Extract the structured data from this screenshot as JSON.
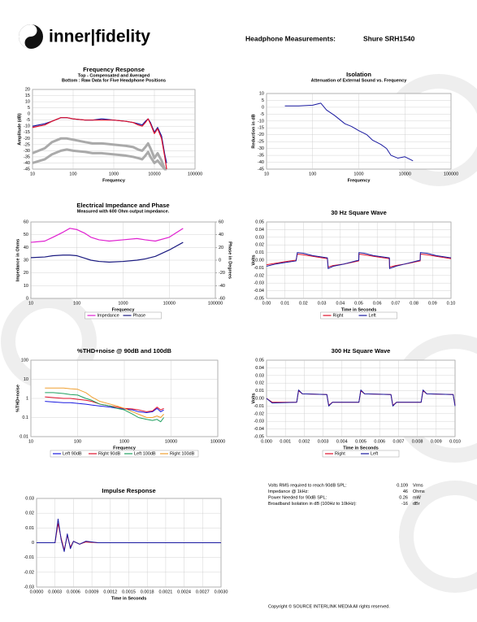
{
  "header": {
    "logo": "inner|fidelity",
    "heading": "Headphone Measurements:",
    "model": "Shure SRH1540"
  },
  "specs": {
    "rows": [
      [
        "Volts RMS required to reach 90dB SPL:",
        0.109,
        "Vrms"
      ],
      [
        "Impedance @ 1kHz:",
        46,
        "Ohms"
      ],
      [
        "Power Needed for 90dB SPL:",
        0.26,
        "mW"
      ],
      [
        "Broadband Isolation in dB (100Hz to 10kHz):",
        -16,
        "dBr"
      ]
    ]
  },
  "footer": {
    "copyright": "Copyright © SOURCE INTERLINK MEDIA All rights reserved."
  },
  "chart_data": [
    {
      "type": "line",
      "title": "Frequency Response",
      "subtitle": [
        "Top -  Compensated and Averaged",
        "Bottom : Raw Data for Five Headphone Positions"
      ],
      "xlabel": "Frequency",
      "ylabel": "Amplitude (dB)",
      "xscale": "log",
      "grid": true,
      "x": [
        10,
        20,
        30,
        50,
        70,
        100,
        200,
        300,
        500,
        1000,
        2000,
        3000,
        4000,
        5000,
        6000,
        7000,
        8000,
        10000,
        12000,
        15000,
        18000,
        20000
      ],
      "xlim": [
        10,
        100000
      ],
      "xticks": [
        10,
        100,
        1000,
        10000,
        100000
      ],
      "ylim": [
        -45,
        20
      ],
      "yticks": [
        20,
        15,
        10,
        5,
        0,
        -5,
        -10,
        -15,
        -20,
        -25,
        -30,
        -35,
        -40,
        -45
      ],
      "series": [
        {
          "color": "#aaaaaa",
          "width": 3,
          "values": [
            -32,
            -28,
            -23,
            -20,
            -20,
            -21,
            -23,
            -24,
            -24,
            -25,
            -26,
            -27,
            -29,
            -30,
            -27,
            -24,
            -28,
            -36,
            -32,
            -38,
            -45,
            -45
          ]
        },
        {
          "color": "#aaaaaa",
          "width": 3,
          "values": [
            -40,
            -37,
            -33,
            -30,
            -29,
            -30,
            -31,
            -32,
            -32,
            -33,
            -34,
            -35,
            -36,
            -37,
            -34,
            -31,
            -35,
            -40,
            -38,
            -42,
            -45,
            -45
          ]
        },
        {
          "color": "#1a1aa0",
          "width": 1.2,
          "values": [
            -10,
            -8,
            -6,
            -3,
            -3,
            -4,
            -5,
            -5,
            -4,
            -5,
            -6,
            -7,
            -8,
            -9,
            -6,
            -4,
            -7,
            -15,
            -11,
            -18,
            -33,
            -40
          ]
        },
        {
          "color": "#e0102a",
          "width": 1.2,
          "values": [
            -11,
            -9,
            -6,
            -3,
            -3,
            -4,
            -5,
            -5,
            -5,
            -5,
            -6,
            -7,
            -9,
            -10,
            -7,
            -4,
            -8,
            -16,
            -12,
            -20,
            -35,
            -45
          ]
        }
      ]
    },
    {
      "type": "line",
      "title": "Isolation",
      "subtitle": [
        "Attenuation of External Sound vs. Frequency"
      ],
      "xlabel": "Frequency",
      "ylabel": "Reduction in dB",
      "xscale": "log",
      "grid": true,
      "x": [
        25,
        50,
        100,
        150,
        200,
        300,
        500,
        700,
        1000,
        1500,
        2000,
        3000,
        4000,
        5000,
        7000,
        10000,
        15000
      ],
      "xlim": [
        10,
        100000
      ],
      "xticks": [
        10,
        100,
        1000,
        10000,
        100000
      ],
      "ylim": [
        -45,
        10
      ],
      "yticks": [
        10,
        5,
        0,
        -5,
        -10,
        -15,
        -20,
        -25,
        -30,
        -35,
        -40,
        -45
      ],
      "series": [
        {
          "color": "#1a1aa0",
          "width": 1,
          "values": [
            1,
            1,
            1.5,
            3,
            -2,
            -6,
            -12,
            -14,
            -17,
            -20,
            -24,
            -27,
            -30,
            -35,
            -37,
            -36,
            -39
          ]
        }
      ]
    },
    {
      "type": "line",
      "title": "Electrical Impedance and Phase",
      "subtitle": [
        "Measured with 600 Ohm output impedance."
      ],
      "xlabel": "Frequency",
      "ylabel": "Impedance in Ohms",
      "y2label": "Phase in Degrees",
      "xscale": "log",
      "grid": true,
      "legend": "bottom",
      "x": [
        10,
        20,
        30,
        50,
        70,
        100,
        150,
        200,
        300,
        500,
        1000,
        2000,
        3000,
        5000,
        10000,
        20000
      ],
      "xlim": [
        10,
        100000
      ],
      "xticks": [
        10,
        100,
        1000,
        10000,
        100000
      ],
      "ylim": [
        0,
        60
      ],
      "yticks": [
        60,
        50,
        40,
        30,
        20,
        10,
        0
      ],
      "y2lim": [
        -60,
        60
      ],
      "y2ticks": [
        60,
        40,
        20,
        0,
        -20,
        -40,
        -60
      ],
      "series": [
        {
          "name": "Impedance",
          "color": "#e020d0",
          "width": 1.2,
          "values": [
            44,
            45,
            48,
            52,
            55,
            54,
            51,
            48,
            46,
            45,
            46,
            47,
            46,
            45,
            48,
            55
          ]
        },
        {
          "name": "Phase",
          "axis": "y2",
          "color": "#1a1a80",
          "width": 1.2,
          "values": [
            4,
            5,
            7,
            8,
            8,
            7,
            3,
            0,
            -2,
            -3,
            -2,
            0,
            2,
            6,
            16,
            28
          ]
        }
      ]
    },
    {
      "type": "line",
      "title": "30 Hz Square Wave",
      "xlabel": "Time in Seconds",
      "ylabel": "Volts",
      "grid": true,
      "legend": "bottom",
      "x": [
        0,
        0.005,
        0.01,
        0.016,
        0.0167,
        0.02,
        0.025,
        0.033,
        0.0334,
        0.036,
        0.042,
        0.05,
        0.0501,
        0.053,
        0.058,
        0.0666,
        0.0667,
        0.07,
        0.075,
        0.0833,
        0.0834,
        0.087,
        0.092,
        0.1
      ],
      "xlim": [
        0,
        0.1
      ],
      "xticks": [
        {
          "value": 0,
          "label": "0.00"
        },
        0.01,
        0.02,
        0.03,
        0.04,
        0.05,
        0.06,
        0.07,
        0.08,
        0.09,
        {
          "value": 0.1,
          "label": "0.10"
        }
      ],
      "ylim": [
        -0.05,
        0.05
      ],
      "yticks": [
        0.05,
        0.04,
        0.03,
        0.02,
        0.01,
        {
          "value": 0,
          "label": "0.00"
        },
        -0.01,
        -0.02,
        -0.03,
        -0.04,
        -0.05
      ],
      "series": [
        {
          "name": "Right",
          "color": "#e0102a",
          "width": 1,
          "values": [
            -0.006,
            -0.004,
            -0.002,
            0,
            0.008,
            0.007,
            0.005,
            0.002,
            -0.009,
            -0.007,
            -0.005,
            -0.001,
            0.008,
            0.007,
            0.005,
            0.002,
            -0.009,
            -0.007,
            -0.005,
            -0.001,
            0.008,
            0.007,
            0.005,
            0.002
          ]
        },
        {
          "name": "Left",
          "color": "#1a1aa0",
          "width": 1,
          "values": [
            -0.008,
            -0.005,
            -0.003,
            -0.001,
            0.01,
            0.009,
            0.006,
            0.003,
            -0.011,
            -0.008,
            -0.005,
            0,
            0.01,
            0.009,
            0.006,
            0.003,
            -0.011,
            -0.008,
            -0.005,
            0,
            0.01,
            0.009,
            0.006,
            0.003
          ]
        }
      ]
    },
    {
      "type": "line",
      "title": "%THD+noise @ 90dB and 100dB",
      "xlabel": "Frequency",
      "ylabel": "%THD+noise",
      "xscale": "log",
      "yscale": "log",
      "grid": true,
      "legend": "bottom",
      "x": [
        20,
        30,
        50,
        70,
        100,
        150,
        200,
        300,
        500,
        700,
        1000,
        1500,
        2000,
        3000,
        4000,
        5000,
        6000,
        7000
      ],
      "xlim": [
        10,
        100000
      ],
      "xticks": [
        10,
        100,
        1000,
        10000,
        100000
      ],
      "ylim": [
        0.01,
        100
      ],
      "yticks": [
        100,
        10,
        1,
        0.1,
        0.01
      ],
      "series": [
        {
          "name": "Left 90dB",
          "color": "#1a1ae0",
          "width": 1,
          "values": [
            0.7,
            0.65,
            0.6,
            0.6,
            0.55,
            0.5,
            0.45,
            0.4,
            0.35,
            0.3,
            0.28,
            0.25,
            0.2,
            0.18,
            0.2,
            0.3,
            0.2,
            0.25
          ]
        },
        {
          "name": "Right 90dB",
          "color": "#e0102a",
          "width": 1,
          "values": [
            1.2,
            1.1,
            1,
            1,
            0.9,
            0.8,
            0.7,
            0.5,
            0.4,
            0.35,
            0.3,
            0.28,
            0.25,
            0.2,
            0.22,
            0.35,
            0.25,
            0.3
          ]
        },
        {
          "name": "Left 100dB",
          "color": "#20a060",
          "width": 1,
          "values": [
            2,
            2,
            1.8,
            1.6,
            1.5,
            1,
            0.8,
            0.5,
            0.4,
            0.3,
            0.25,
            0.15,
            0.1,
            0.08,
            0.07,
            0.08,
            0.06,
            0.1
          ]
        },
        {
          "name": "Right 100dB",
          "color": "#f0a030",
          "width": 1,
          "values": [
            3.5,
            3.5,
            3.5,
            3.2,
            3,
            2,
            1.2,
            0.7,
            0.5,
            0.4,
            0.3,
            0.2,
            0.15,
            0.1,
            0.1,
            0.12,
            0.1,
            0.15
          ]
        }
      ]
    },
    {
      "type": "line",
      "title": "300 Hz Square Wave",
      "xlabel": "Time in Seconds",
      "ylabel": "Volts",
      "grid": true,
      "legend": "bottom",
      "x": [
        0,
        0.0003,
        0.0016,
        0.0017,
        0.0019,
        0.0032,
        0.0033,
        0.0035,
        0.0049,
        0.005,
        0.0052,
        0.0066,
        0.0067,
        0.0069,
        0.0082,
        0.0083,
        0.0085,
        0.0099,
        0.01
      ],
      "xlim": [
        0,
        0.01
      ],
      "xticks": [
        {
          "value": 0,
          "label": "0.000"
        },
        {
          "value": 0.001,
          "label": "0.001"
        },
        {
          "value": 0.002,
          "label": "0.002"
        },
        {
          "value": 0.003,
          "label": "0.003"
        },
        {
          "value": 0.004,
          "label": "0.004"
        },
        {
          "value": 0.005,
          "label": "0.005"
        },
        {
          "value": 0.006,
          "label": "0.006"
        },
        {
          "value": 0.007,
          "label": "0.007"
        },
        {
          "value": 0.008,
          "label": "0.008"
        },
        {
          "value": 0.009,
          "label": "0.009"
        },
        {
          "value": 0.01,
          "label": "0.010"
        }
      ],
      "ylim": [
        -0.05,
        0.05
      ],
      "yticks": [
        0.05,
        0.04,
        0.03,
        0.02,
        0.01,
        {
          "value": 0,
          "label": "0.00"
        },
        -0.01,
        -0.02,
        -0.03,
        -0.04,
        -0.05
      ],
      "series": [
        {
          "name": "Right",
          "color": "#e0102a",
          "width": 1,
          "values": [
            0,
            -0.005,
            -0.005,
            0.01,
            0.006,
            0.005,
            -0.009,
            -0.005,
            -0.005,
            0.01,
            0.006,
            0.005,
            -0.009,
            -0.005,
            -0.005,
            0.01,
            0.006,
            0.005,
            -0.009
          ]
        },
        {
          "name": "Left",
          "color": "#1a1aa0",
          "width": 1,
          "values": [
            0,
            -0.006,
            -0.005,
            0.011,
            0.006,
            0.005,
            -0.01,
            -0.005,
            -0.005,
            0.011,
            0.006,
            0.005,
            -0.01,
            -0.005,
            -0.005,
            0.011,
            0.006,
            0.005,
            -0.01
          ]
        }
      ]
    },
    {
      "type": "line",
      "title": "Impulse Response",
      "xlabel": "Time in Seconds",
      "grid": true,
      "x": [
        0,
        0.0003,
        0.00035,
        0.0004,
        0.00045,
        0.0005,
        0.00055,
        0.0006,
        0.0007,
        0.0008,
        0.001,
        0.0015,
        0.002,
        0.003
      ],
      "xlim": [
        0,
        0.003
      ],
      "xticks": [
        {
          "value": 0,
          "label": "0.0000"
        },
        {
          "value": 0.0003,
          "label": "0.0003"
        },
        {
          "value": 0.0006,
          "label": "0.0006"
        },
        {
          "value": 0.0009,
          "label": "0.0009"
        },
        {
          "value": 0.0012,
          "label": "0.0012"
        },
        {
          "value": 0.0015,
          "label": "0.0015"
        },
        {
          "value": 0.0018,
          "label": "0.0018"
        },
        {
          "value": 0.0021,
          "label": "0.0021"
        },
        {
          "value": 0.0024,
          "label": "0.0024"
        },
        {
          "value": 0.0027,
          "label": "0.0027"
        },
        {
          "value": 0.003,
          "label": "0.0030"
        }
      ],
      "ylim": [
        -0.03,
        0.03
      ],
      "yticks": [
        0.03,
        0.02,
        0.01,
        0,
        -0.01,
        -0.02,
        -0.03
      ],
      "series": [
        {
          "color": "#e0102a",
          "width": 1,
          "values": [
            0,
            0,
            0.013,
            0.003,
            -0.005,
            0.005,
            -0.003,
            0.001,
            -0.001,
            0.0005,
            0,
            0,
            0,
            0
          ]
        },
        {
          "color": "#1a1aa0",
          "width": 1,
          "values": [
            0,
            0,
            0.016,
            0.002,
            -0.006,
            0.006,
            -0.004,
            0.001,
            -0.001,
            0.001,
            0,
            0,
            0,
            0
          ]
        }
      ]
    }
  ]
}
